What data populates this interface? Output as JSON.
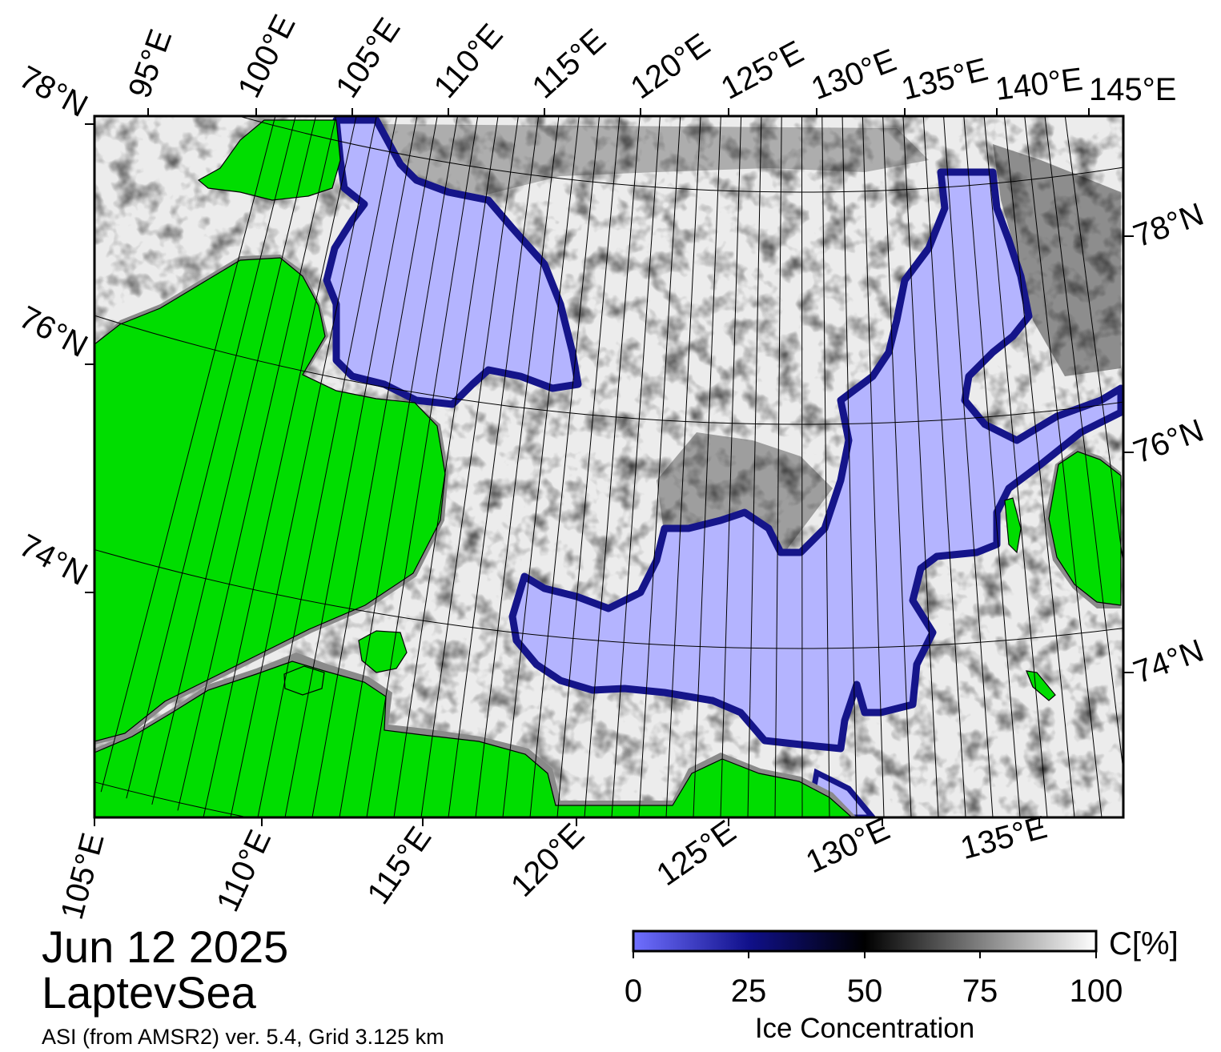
{
  "map": {
    "date": "Jun 12 2025",
    "region": "LaptevSea",
    "source": "ASI (from AMSR2) ver. 5.4,  Grid 3.125 km",
    "colors": {
      "land": "#00dd00",
      "land_shadow": "#8a8a8a",
      "open_water": "#b4b4ff",
      "ice_edge": "#1a1a8a",
      "ice_full": "#ffffff",
      "coastline": "#000000"
    },
    "top_lon_labels": [
      "95°E",
      "100°E",
      "105°E",
      "110°E",
      "115°E",
      "120°E",
      "125°E",
      "130°E",
      "135°E",
      "140°E",
      "145°E"
    ],
    "bottom_lon_labels": [
      "105°E",
      "110°E",
      "115°E",
      "120°E",
      "125°E",
      "130°E",
      "135°E"
    ],
    "left_lat_labels": [
      "78°N",
      "76°N",
      "74°N"
    ],
    "right_lat_labels": [
      "78°N",
      "76°N",
      "74°N"
    ]
  },
  "colorbar": {
    "title": "Ice Concentration",
    "unit": "C[%]",
    "ticks": [
      "0",
      "25",
      "50",
      "75",
      "100"
    ],
    "stops": [
      {
        "value": 0,
        "color": "#7070ff"
      },
      {
        "value": 25,
        "color": "#10108a"
      },
      {
        "value": 50,
        "color": "#000000"
      },
      {
        "value": 75,
        "color": "#808080"
      },
      {
        "value": 100,
        "color": "#ffffff"
      }
    ]
  }
}
